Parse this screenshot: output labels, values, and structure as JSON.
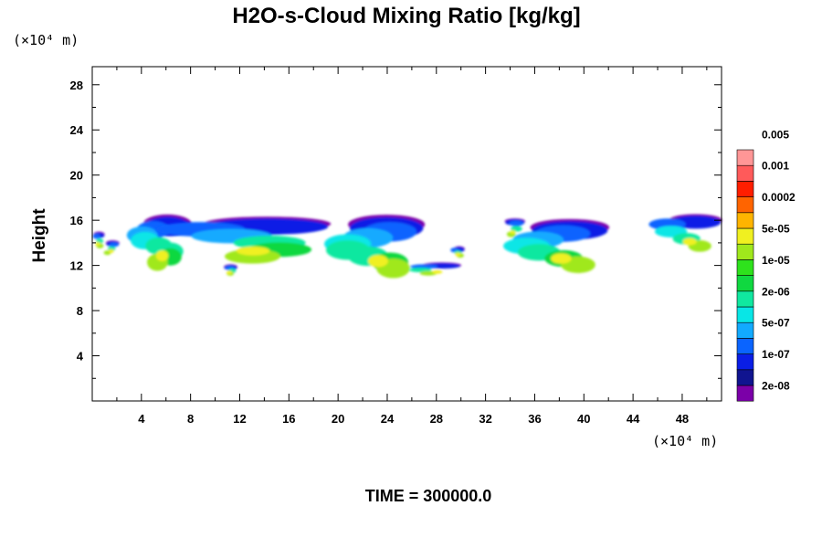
{
  "chart_data": {
    "type": "heatmap",
    "title": "H2O-s-Cloud Mixing Ratio [kg/kg]",
    "ylabel": "Height",
    "xlabel": "",
    "x_unit_label": "(×10⁴ m)",
    "y_unit_label": "(×10⁴ m)",
    "xlim": [
      0,
      51.2
    ],
    "ylim": [
      0,
      29.6
    ],
    "x_ticks": [
      4,
      8,
      12,
      16,
      20,
      24,
      28,
      32,
      36,
      40,
      44,
      48
    ],
    "y_ticks": [
      4,
      8,
      12,
      16,
      20,
      24,
      28
    ],
    "grid": false,
    "colorbar": {
      "levels": [
        "2e-08",
        "1e-07",
        "5e-07",
        "2e-06",
        "1e-05",
        "5e-05",
        "0.0002",
        "0.001",
        "0.005"
      ],
      "colors": [
        "#7b00a8",
        "#101490",
        "#0a1ee6",
        "#0a64ff",
        "#12aaff",
        "#08e6e6",
        "#10e8a0",
        "#10d840",
        "#2ee21c",
        "#a0e81c",
        "#f0f020",
        "#ffb400",
        "#ff6400",
        "#ff1e00",
        "#ff5a5a",
        "#ff9696"
      ]
    },
    "cloud_layers": [
      {
        "x_range": [
          0,
          1
        ],
        "z_range": [
          13.6,
          15
        ]
      },
      {
        "x_range": [
          1,
          2.2
        ],
        "z_range": [
          13,
          14.2
        ]
      },
      {
        "x_range": [
          3.8,
          8
        ],
        "z_range": [
          11.8,
          16.6
        ]
      },
      {
        "x_range": [
          8,
          19.3
        ],
        "z_range": [
          12.4,
          16.4
        ]
      },
      {
        "x_range": [
          10.6,
          11.8
        ],
        "z_range": [
          11.2,
          12
        ]
      },
      {
        "x_range": [
          20.2,
          27
        ],
        "z_range": [
          11.2,
          16.6
        ]
      },
      {
        "x_range": [
          26.5,
          30
        ],
        "z_range": [
          11.2,
          12.2
        ]
      },
      {
        "x_range": [
          29.3,
          30.3
        ],
        "z_range": [
          12.8,
          13.6
        ]
      },
      {
        "x_range": [
          33.4,
          35.2
        ],
        "z_range": [
          14.6,
          16.2
        ]
      },
      {
        "x_range": [
          35,
          42
        ],
        "z_range": [
          11.6,
          16.2
        ]
      },
      {
        "x_range": [
          46.5,
          51.2
        ],
        "z_range": [
          13.4,
          16.6
        ]
      }
    ]
  },
  "footer": {
    "time_label": "TIME = 300000.0"
  }
}
